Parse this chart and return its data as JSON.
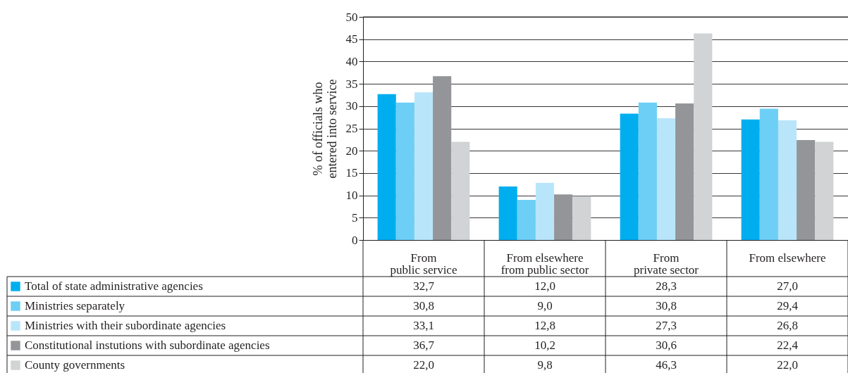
{
  "chart_data": {
    "type": "bar",
    "ylabel": "% of officials who\nentered into service",
    "categories": [
      "From\npublic service",
      "From elsewhere\nfrom public sector",
      "From\nprivate sector",
      "From elsewhere"
    ],
    "series": [
      {
        "name": "Total of state administrative agencies",
        "color": "#00aeef",
        "values": [
          32.7,
          12.0,
          28.3,
          27.0
        ],
        "value_labels": [
          "32,7",
          "12,0",
          "28,3",
          "27,0"
        ]
      },
      {
        "name": "Ministries separately",
        "color": "#6dcff6",
        "values": [
          30.8,
          9.0,
          30.8,
          29.4
        ],
        "value_labels": [
          "30,8",
          "9,0",
          "30,8",
          "29,4"
        ]
      },
      {
        "name": "Ministries with their subordinate agencies",
        "color": "#b9e5fb",
        "values": [
          33.1,
          12.8,
          27.3,
          26.8
        ],
        "value_labels": [
          "33,1",
          "12,8",
          "27,3",
          "26,8"
        ]
      },
      {
        "name": "Constitutional instutions with subordinate agencies",
        "color": "#939598",
        "values": [
          36.7,
          10.2,
          30.6,
          22.4
        ],
        "value_labels": [
          "36,7",
          "10,2",
          "30,6",
          "22,4"
        ]
      },
      {
        "name": "County governments",
        "color": "#d1d3d4",
        "values": [
          22.0,
          9.8,
          46.3,
          22.0
        ],
        "value_labels": [
          "22,0",
          "9,8",
          "46,3",
          "22,0"
        ]
      }
    ],
    "ylim": [
      0,
      50
    ],
    "yticks": [
      0,
      5,
      10,
      15,
      20,
      25,
      30,
      35,
      40,
      45,
      50
    ],
    "grid": "y",
    "legend": "bottom"
  }
}
